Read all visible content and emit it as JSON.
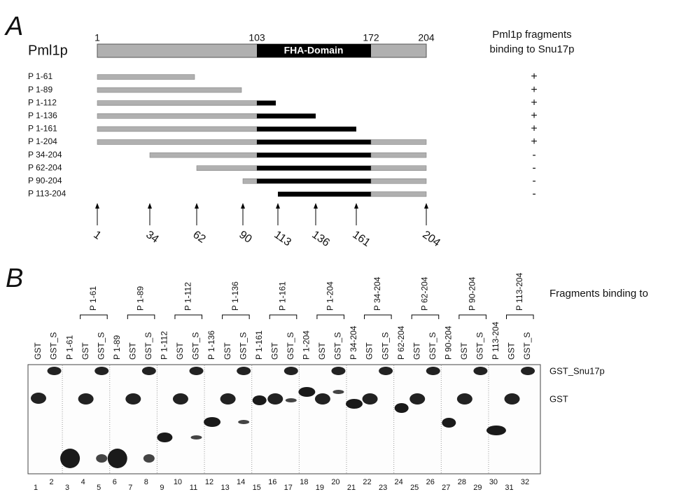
{
  "panel_a": {
    "label": "A",
    "protein": "Pml1p",
    "positions": [
      "1",
      "103",
      "172",
      "204"
    ],
    "domain": "FHA-Domain",
    "binding_header": [
      "Pml1p fragments",
      "binding to Snu17p"
    ],
    "fragments": [
      {
        "name": "P 1-61",
        "binding": "+"
      },
      {
        "name": "P 1-89",
        "binding": "+"
      },
      {
        "name": "P 1-112",
        "binding": "+"
      },
      {
        "name": "P 1-136",
        "binding": "+"
      },
      {
        "name": "P 1-161",
        "binding": "+"
      },
      {
        "name": "P 1-204",
        "binding": "+"
      },
      {
        "name": "P 34-204",
        "binding": "-"
      },
      {
        "name": "P 62-204",
        "binding": "-"
      },
      {
        "name": "P 90-204",
        "binding": "-"
      },
      {
        "name": "P 113-204",
        "binding": "-"
      }
    ],
    "arrow_labels": [
      "1",
      "34",
      "62",
      "90",
      "113",
      "136",
      "161",
      "204"
    ]
  },
  "panel_b": {
    "label": "B",
    "title": "Fragments binding to",
    "group_headers": [
      "P 1-61",
      "P 1-89",
      "P 1-112",
      "P 1-136",
      "P 1-161",
      "P 1-204",
      "P 34-204",
      "P 62-204",
      "P 90-204",
      "P 113-204"
    ],
    "lanes": [
      "GST",
      "GST_S",
      "P 1-61",
      "GST",
      "GST_S",
      "P 1-89",
      "GST",
      "GST_S",
      "P 1-112",
      "GST",
      "GST_S",
      "P 1-136",
      "GST",
      "GST_S",
      "P 1-161",
      "GST",
      "GST_S",
      "P 1-204",
      "GST",
      "GST_S",
      "P 34-204",
      "GST",
      "GST_S",
      "P 62-204",
      "GST",
      "GST_S",
      "P 90-204",
      "GST",
      "GST_S",
      "P 113-204",
      "GST",
      "GST_S"
    ],
    "lane_numbers": [
      1,
      2,
      3,
      4,
      5,
      6,
      7,
      8,
      9,
      10,
      11,
      12,
      13,
      14,
      15,
      16,
      17,
      18,
      19,
      20,
      21,
      22,
      23,
      24,
      25,
      26,
      27,
      28,
      29,
      30,
      31,
      32
    ],
    "band_labels": [
      "GST_Snu17p",
      "GST"
    ]
  }
}
